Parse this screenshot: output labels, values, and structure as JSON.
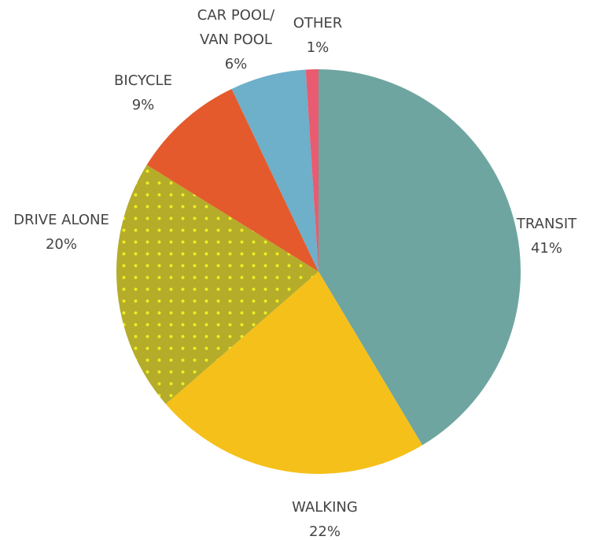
{
  "chart_data": {
    "type": "pie",
    "categories": [
      "TRANSIT",
      "WALKING",
      "DRIVE ALONE",
      "BICYCLE",
      "CAR POOL/\nVAN POOL",
      "OTHER"
    ],
    "values": [
      41,
      22,
      20,
      9,
      6,
      1
    ],
    "value_labels": [
      "41%",
      "22%",
      "20%",
      "9%",
      "6%",
      "1%"
    ],
    "colors": [
      "#6fa5a0",
      "#f5c01a",
      "#b5ac2a",
      "#e45a2c",
      "#6eafc9",
      "#e95b70"
    ]
  }
}
